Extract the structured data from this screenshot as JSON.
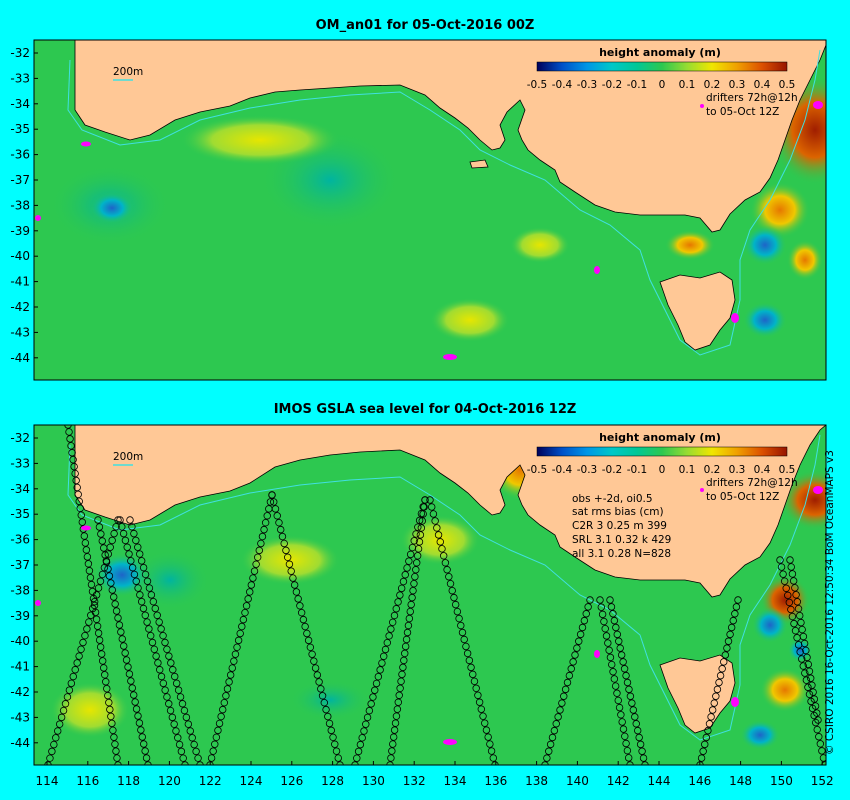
{
  "top_panel": {
    "title": "OM_an01 for 05-Oct-2016 00Z",
    "isobath_label": "200m",
    "drifters_label_1": "drifters 72h@12h",
    "drifters_label_2": "to 05-Oct 12Z"
  },
  "bottom_panel": {
    "title": "IMOS GSLA sea level  for 04-Oct-2016 12Z",
    "isobath_label": "200m",
    "drifters_label_1": "drifters 72h@12h",
    "drifters_label_2": "to 05-Oct 12Z",
    "stats": [
      "obs +-2d, oi0.5",
      "sat rms bias (cm)",
      "C2R   3 0.25 m 399",
      "SRL   3.1 0.32 k 429",
      "all   3.1 0.28 N=828"
    ]
  },
  "colorbar": {
    "title": "height anomaly (m)",
    "ticks": [
      "-0.5",
      "-0.4",
      "-0.3",
      "-0.2",
      "-0.1",
      "0",
      "0.1",
      "0.2",
      "0.3",
      "0.4",
      "0.5"
    ]
  },
  "lat_ticks": [
    "-32",
    "-33",
    "-34",
    "-35",
    "-36",
    "-37",
    "-38",
    "-39",
    "-40",
    "-41",
    "-42",
    "-43",
    "-44"
  ],
  "lon_ticks": [
    "114",
    "116",
    "118",
    "120",
    "122",
    "124",
    "126",
    "128",
    "130",
    "132",
    "134",
    "136",
    "138",
    "140",
    "142",
    "144",
    "146",
    "148",
    "150",
    "152"
  ],
  "credit": "© CSIRO 2016  16-Oct-2016 12:50:34 BoM OceanMAPS v3",
  "colors": {
    "background": "#00ffff",
    "land": "#ffc896",
    "ocean_base": "#2dc850",
    "isobath": "#40e0e0",
    "drifter": "#ff00ff",
    "track": "#000000"
  }
}
